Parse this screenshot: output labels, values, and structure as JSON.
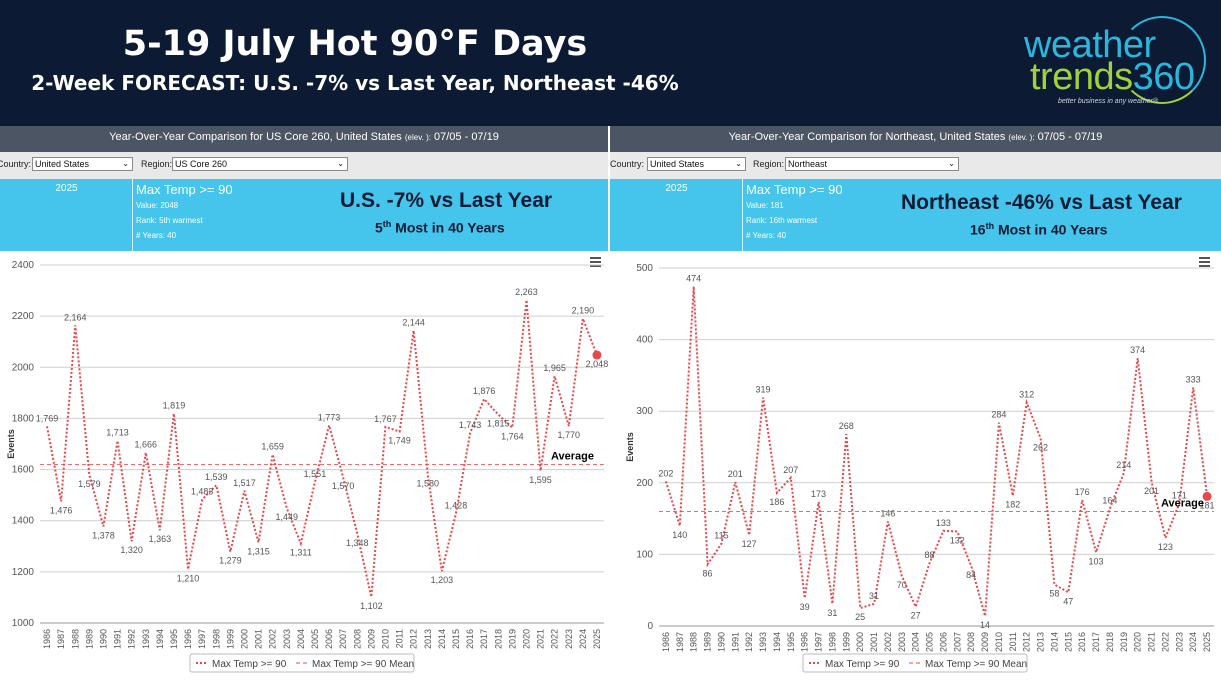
{
  "header": {
    "title": "5-19 July Hot 90°F Days",
    "subtitle": "2-Week FORECAST:  U.S. -7% vs Last Year, Northeast -46%",
    "logo": {
      "line1": "weather",
      "line2": "trends",
      "line2b": "360",
      "tagline": "better business in any weather®"
    }
  },
  "colors": {
    "banner": "#0c1a33",
    "info_band": "#45c5ec",
    "series": "#e8474b",
    "brand_blue": "#29b7dd",
    "brand_green": "#9ed13a"
  },
  "panels": [
    {
      "heading": "Year-Over-Year Comparison for US Core 260, United States",
      "elev": "(elev. ):",
      "dates": "07/05 - 07/19",
      "country_label": "Country:",
      "country_value": "United States",
      "region_label": "Region:",
      "region_value": "US Core 260",
      "year": "2025",
      "metric": "Max Temp >= 90",
      "value_line": "Value: 2048",
      "rank_line": "Rank: 5th warmest",
      "years_line": "# Years: 40",
      "headline": "U.S. -7% vs Last Year",
      "rank_num": "5",
      "rank_sup": "th",
      "rank_rest": " Most in 40 Years",
      "menu_icon": "hamburger-menu-icon"
    },
    {
      "heading": "Year-Over-Year Comparison for Northeast, United States",
      "elev": "(elev. ):",
      "dates": "07/05 - 07/19",
      "country_label": "Country:",
      "country_value": "United States",
      "region_label": "Region:",
      "region_value": "Northeast",
      "year": "2025",
      "metric": "Max Temp >= 90",
      "value_line": "Value: 181",
      "rank_line": "Rank: 16th warmest",
      "years_line": "# Years: 40",
      "headline": "Northeast -46% vs Last Year",
      "rank_num": "16",
      "rank_sup": "th",
      "rank_rest": " Most in 40 Years",
      "menu_icon": "hamburger-menu-icon"
    }
  ],
  "chart_data": [
    {
      "type": "line",
      "ylabel": "Events",
      "ylim": [
        1000,
        2400
      ],
      "yticks": [
        1000,
        1200,
        1400,
        1600,
        1800,
        2000,
        2200,
        2400
      ],
      "x": [
        "1986",
        "1987",
        "1988",
        "1989",
        "1990",
        "1991",
        "1992",
        "1993",
        "1994",
        "1995",
        "1996",
        "1997",
        "1998",
        "1999",
        "2000",
        "2001",
        "2002",
        "2003",
        "2004",
        "2005",
        "2006",
        "2007",
        "2008",
        "2009",
        "2010",
        "2011",
        "2012",
        "2013",
        "2014",
        "2015",
        "2016",
        "2017",
        "2018",
        "2019",
        "2020",
        "2021",
        "2022",
        "2023",
        "2024",
        "2025"
      ],
      "series": [
        {
          "name": "Max Temp >= 90",
          "values": [
            1769,
            1476,
            2164,
            1579,
            1378,
            1713,
            1320,
            1666,
            1363,
            1819,
            1210,
            1483,
            1539,
            1279,
            1517,
            1315,
            1659,
            1449,
            1311,
            1551,
            1773,
            1570,
            1348,
            1102,
            1767,
            1749,
            2144,
            1580,
            1203,
            1428,
            1743,
            1876,
            1815,
            1764,
            2263,
            1595,
            1965,
            1770,
            2190,
            2048
          ]
        },
        {
          "name": "Max Temp >= 90 Mean",
          "value": 1620
        }
      ],
      "annotation": "Average",
      "grid": true,
      "legend": "bottom"
    },
    {
      "type": "line",
      "ylabel": "Events",
      "ylim": [
        0,
        500
      ],
      "yticks": [
        0,
        100,
        200,
        300,
        400,
        500
      ],
      "x": [
        "1986",
        "1987",
        "1988",
        "1989",
        "1990",
        "1991",
        "1992",
        "1993",
        "1994",
        "1995",
        "1996",
        "1997",
        "1998",
        "1999",
        "2000",
        "2001",
        "2002",
        "2003",
        "2004",
        "2005",
        "2006",
        "2007",
        "2008",
        "2009",
        "2010",
        "2011",
        "2012",
        "2013",
        "2014",
        "2015",
        "2016",
        "2017",
        "2018",
        "2019",
        "2020",
        "2021",
        "2022",
        "2023",
        "2024",
        "2025"
      ],
      "series": [
        {
          "name": "Max Temp >= 90",
          "values": [
            202,
            140,
            474,
            86,
            115,
            201,
            127,
            319,
            186,
            207,
            39,
            173,
            31,
            268,
            25,
            31,
            146,
            70,
            27,
            88,
            133,
            132,
            84,
            14,
            284,
            182,
            312,
            262,
            58,
            47,
            176,
            103,
            164,
            214,
            374,
            201,
            123,
            171,
            333,
            181
          ]
        },
        {
          "name": "Max Temp >= 90 Mean",
          "value": 160
        }
      ],
      "annotation": "Average",
      "grid": true,
      "legend": "bottom"
    }
  ]
}
